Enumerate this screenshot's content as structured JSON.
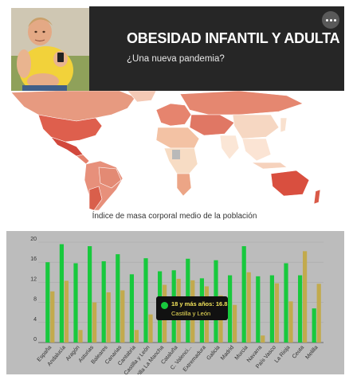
{
  "header": {
    "title": "OBESIDAD INFANTIL Y ADULTA",
    "subtitle": "¿Una nueva pandemia?"
  },
  "map": {
    "caption": "Índice de masa corporal medio de la población"
  },
  "tooltip": {
    "headline": "18 y más años: 16.8",
    "region": "Castilla y León"
  },
  "chart_data": {
    "type": "bar",
    "categories": [
      "España",
      "Andalucía",
      "Aragón",
      "Asturias",
      "Baleares",
      "Canarias",
      "Cantabria",
      "Castilla y León",
      "Castilla La Mancha",
      "Cataluña",
      "C. Valenciana",
      "Extremadura",
      "Galicia",
      "Madrid",
      "Murcia",
      "Navarra",
      "País Vasco",
      "La Rioja",
      "Ceuta",
      "Melilla"
    ],
    "tick_labels": [
      "España",
      "Andalucía",
      "Aragón",
      "Asturias",
      "Baleares",
      "Canarias",
      "Cantabria",
      "Castilla y León",
      "Castilla La Mancha",
      "Cataluña",
      "C. Valenci...",
      "Extremadura",
      "Galicia",
      "Madrid",
      "Murcia",
      "Navarra",
      "País Vasco",
      "La Rioja",
      "Ceuta",
      "Melilla"
    ],
    "series": [
      {
        "name": "18 y más años",
        "color": "#18c93d",
        "values": [
          16.0,
          19.6,
          15.8,
          19.2,
          16.2,
          17.6,
          13.6,
          16.8,
          14.2,
          14.4,
          16.7,
          12.8,
          16.4,
          13.4,
          19.2,
          13.2,
          13.4,
          15.8,
          13.4,
          6.8
        ]
      },
      {
        "color": "#c2aa4d",
        "values": [
          10.2,
          12.3,
          2.5,
          8.0,
          10.0,
          10.4,
          2.5,
          5.6,
          11.5,
          12.7,
          12.4,
          11.2,
          9.4,
          7.5,
          14.0,
          1.4,
          11.8,
          8.2,
          18.2,
          11.7
        ]
      }
    ],
    "yticks": [
      0,
      4,
      8,
      12,
      16,
      20
    ],
    "ylim": [
      0,
      20
    ],
    "grid": true,
    "highlight_index": 7
  },
  "colors": {
    "header_bg": "#262626",
    "chart_bg": "#bcbcbc",
    "green": "#18c93d",
    "gold": "#c2aa4d"
  }
}
